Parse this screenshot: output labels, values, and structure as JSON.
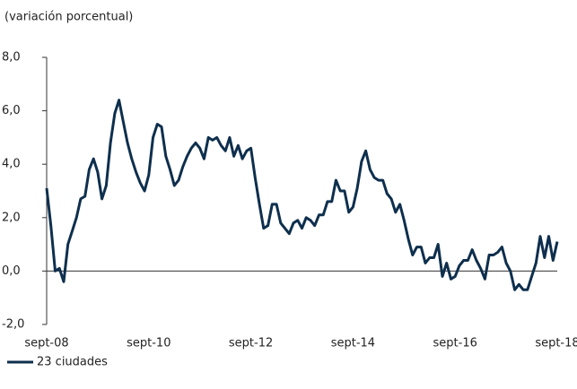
{
  "chart_data": {
    "type": "line",
    "title": "(variación porcentual)",
    "categories": [
      "sept-08",
      null,
      null,
      null,
      null,
      null,
      null,
      null,
      null,
      null,
      null,
      null,
      null,
      null,
      null,
      null,
      null,
      null,
      null,
      null,
      null,
      null,
      null,
      null,
      "sept-10",
      null,
      null,
      null,
      null,
      null,
      null,
      null,
      null,
      null,
      null,
      null,
      null,
      null,
      null,
      null,
      null,
      null,
      null,
      null,
      null,
      null,
      null,
      null,
      "sept-12",
      null,
      null,
      null,
      null,
      null,
      null,
      null,
      null,
      null,
      null,
      null,
      null,
      null,
      null,
      null,
      null,
      null,
      null,
      null,
      null,
      null,
      null,
      null,
      "sept-14",
      null,
      null,
      null,
      null,
      null,
      null,
      null,
      null,
      null,
      null,
      null,
      null,
      null,
      null,
      null,
      null,
      null,
      null,
      null,
      null,
      null,
      null,
      null,
      "sept-16",
      null,
      null,
      null,
      null,
      null,
      null,
      null,
      null,
      null,
      null,
      null,
      null,
      null,
      null,
      null,
      null,
      null,
      null,
      null,
      null,
      null,
      null,
      null,
      "sept-18"
    ],
    "series": [
      {
        "name": "23 ciudades",
        "color": "#0e2f4d",
        "values": [
          3.1,
          1.7,
          0.0,
          0.1,
          -0.4,
          1.0,
          1.5,
          2.0,
          2.7,
          2.8,
          3.8,
          4.2,
          3.7,
          2.7,
          3.2,
          4.8,
          5.9,
          6.4,
          5.6,
          4.8,
          4.2,
          3.7,
          3.3,
          3.0,
          3.6,
          5.0,
          5.5,
          5.4,
          4.3,
          3.8,
          3.2,
          3.4,
          3.9,
          4.3,
          4.6,
          4.8,
          4.6,
          4.2,
          5.0,
          4.9,
          5.0,
          4.7,
          4.5,
          5.0,
          4.3,
          4.7,
          4.2,
          4.5,
          4.6,
          3.5,
          2.5,
          1.6,
          1.7,
          2.5,
          2.5,
          1.8,
          1.6,
          1.4,
          1.8,
          1.9,
          1.6,
          2.0,
          1.9,
          1.7,
          2.1,
          2.1,
          2.6,
          2.6,
          3.4,
          3.0,
          3.0,
          2.2,
          2.4,
          3.1,
          4.1,
          4.5,
          3.8,
          3.5,
          3.4,
          3.4,
          2.9,
          2.7,
          2.2,
          2.5,
          1.9,
          1.2,
          0.6,
          0.9,
          0.9,
          0.3,
          0.5,
          0.5,
          1.0,
          -0.2,
          0.3,
          -0.3,
          -0.2,
          0.2,
          0.4,
          0.4,
          0.8,
          0.4,
          0.1,
          -0.3,
          0.6,
          0.6,
          0.7,
          0.9,
          0.3,
          0.0,
          -0.7,
          -0.5,
          -0.7,
          -0.7,
          -0.2,
          0.3,
          1.3,
          0.5,
          1.3,
          0.4,
          1.1
        ]
      }
    ],
    "ylim": [
      -2,
      8
    ],
    "yticks": [
      {
        "value": -2,
        "label": "-2,0"
      },
      {
        "value": 0,
        "label": "0,0"
      },
      {
        "value": 2,
        "label": "2,0"
      },
      {
        "value": 4,
        "label": "4,0"
      },
      {
        "value": 6,
        "label": "6,0"
      },
      {
        "value": 8,
        "label": "8,0"
      }
    ]
  }
}
